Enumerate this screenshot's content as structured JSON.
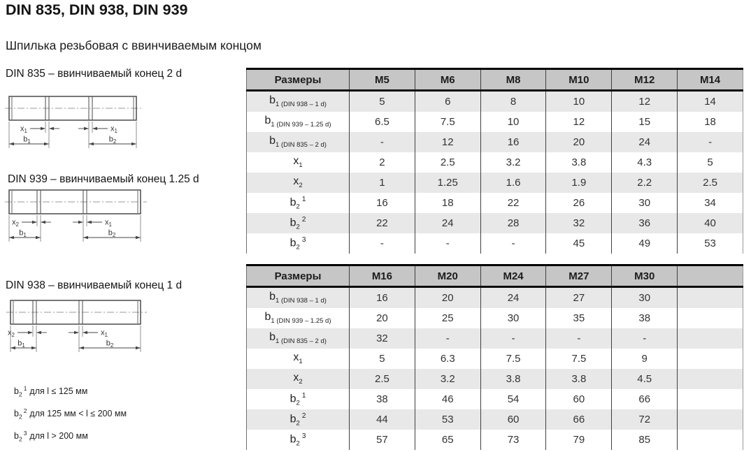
{
  "page": {
    "title": "DIN 835, DIN 938, DIN 939",
    "subtitle": "Шпилька резьбовая с ввинчиваемым концом"
  },
  "colors": {
    "header_bg": "#c6c6c6",
    "row_alt_bg": "#e8e8e8",
    "drawing_line": "#555555"
  },
  "drawings": [
    {
      "caption": "DIN 835 – ввинчиваемый конец 2 d",
      "labels": {
        "x_left": {
          "base": "x",
          "sub": "1"
        },
        "x_right": {
          "base": "x",
          "sub": "1"
        },
        "b_left": {
          "base": "b",
          "sub": "1"
        },
        "b_right": {
          "base": "b",
          "sub": "2"
        }
      }
    },
    {
      "caption": "DIN 939 – ввинчиваемый конец 1.25 d",
      "labels": {
        "x_left": {
          "base": "x",
          "sub": "2"
        },
        "x_right": {
          "base": "x",
          "sub": "1"
        },
        "b_left": {
          "base": "b",
          "sub": "1"
        },
        "b_right": {
          "base": "b",
          "sub": "2"
        }
      }
    },
    {
      "caption": "DIN 938 – ввинчиваемый конец 1 d",
      "labels": {
        "x_left": {
          "base": "x",
          "sub": "2"
        },
        "x_right": {
          "base": "x",
          "sub": "1"
        },
        "b_left": {
          "base": "b",
          "sub": "1"
        },
        "b_right": {
          "base": "b",
          "sub": "2"
        }
      }
    }
  ],
  "tables": [
    {
      "name": "sizes-m5-m14",
      "header": [
        "Размеры",
        "M5",
        "M6",
        "M8",
        "M10",
        "M12",
        "M14"
      ],
      "rows": [
        {
          "label": {
            "base": "b",
            "sub": "1",
            "sup": "",
            "note": "(DIN 938 – 1 d)"
          },
          "values": [
            "5",
            "6",
            "8",
            "10",
            "12",
            "14"
          ]
        },
        {
          "label": {
            "base": "b",
            "sub": "1",
            "sup": "",
            "note": "(DIN 939 – 1.25 d)"
          },
          "values": [
            "6.5",
            "7.5",
            "10",
            "12",
            "15",
            "18"
          ]
        },
        {
          "label": {
            "base": "b",
            "sub": "1",
            "sup": "",
            "note": "(DIN 835 – 2 d)"
          },
          "values": [
            "-",
            "12",
            "16",
            "20",
            "24",
            "-"
          ]
        },
        {
          "label": {
            "base": "x",
            "sub": "1",
            "sup": "",
            "note": ""
          },
          "values": [
            "2",
            "2.5",
            "3.2",
            "3.8",
            "4.3",
            "5"
          ]
        },
        {
          "label": {
            "base": "x",
            "sub": "2",
            "sup": "",
            "note": ""
          },
          "values": [
            "1",
            "1.25",
            "1.6",
            "1.9",
            "2.2",
            "2.5"
          ]
        },
        {
          "label": {
            "base": "b",
            "sub": "2",
            "sup": "1",
            "note": ""
          },
          "values": [
            "16",
            "18",
            "22",
            "26",
            "30",
            "34"
          ]
        },
        {
          "label": {
            "base": "b",
            "sub": "2",
            "sup": "2",
            "note": ""
          },
          "values": [
            "22",
            "24",
            "28",
            "32",
            "36",
            "40"
          ]
        },
        {
          "label": {
            "base": "b",
            "sub": "2",
            "sup": "3",
            "note": ""
          },
          "values": [
            "-",
            "-",
            "-",
            "45",
            "49",
            "53"
          ]
        }
      ]
    },
    {
      "name": "sizes-m16-m30",
      "header": [
        "Размеры",
        "M16",
        "M20",
        "M24",
        "M27",
        "M30",
        ""
      ],
      "rows": [
        {
          "label": {
            "base": "b",
            "sub": "1",
            "sup": "",
            "note": "(DIN 938 – 1 d)"
          },
          "values": [
            "16",
            "20",
            "24",
            "27",
            "30",
            ""
          ]
        },
        {
          "label": {
            "base": "b",
            "sub": "1",
            "sup": "",
            "note": "(DIN 939 – 1.25 d)"
          },
          "values": [
            "20",
            "25",
            "30",
            "35",
            "38",
            ""
          ]
        },
        {
          "label": {
            "base": "b",
            "sub": "1",
            "sup": "",
            "note": "(DIN 835 – 2 d)"
          },
          "values": [
            "32",
            "-",
            "-",
            "-",
            "-",
            ""
          ]
        },
        {
          "label": {
            "base": "x",
            "sub": "1",
            "sup": "",
            "note": ""
          },
          "values": [
            "5",
            "6.3",
            "7.5",
            "7.5",
            "9",
            ""
          ]
        },
        {
          "label": {
            "base": "x",
            "sub": "2",
            "sup": "",
            "note": ""
          },
          "values": [
            "2.5",
            "3.2",
            "3.8",
            "3.8",
            "4.5",
            ""
          ]
        },
        {
          "label": {
            "base": "b",
            "sub": "2",
            "sup": "1",
            "note": ""
          },
          "values": [
            "38",
            "46",
            "54",
            "60",
            "66",
            ""
          ]
        },
        {
          "label": {
            "base": "b",
            "sub": "2",
            "sup": "2",
            "note": ""
          },
          "values": [
            "44",
            "53",
            "60",
            "66",
            "72",
            ""
          ]
        },
        {
          "label": {
            "base": "b",
            "sub": "2",
            "sup": "3",
            "note": ""
          },
          "values": [
            "57",
            "65",
            "73",
            "79",
            "85",
            ""
          ]
        }
      ]
    }
  ],
  "footnotes": [
    {
      "base": "b",
      "sub": "2",
      "sup": "1",
      "text": "для l ≤ 125 мм"
    },
    {
      "base": "b",
      "sub": "2",
      "sup": "2",
      "text": "для 125 мм < l ≤ 200 мм"
    },
    {
      "base": "b",
      "sub": "2",
      "sup": "3",
      "text": "для l > 200 мм"
    }
  ]
}
